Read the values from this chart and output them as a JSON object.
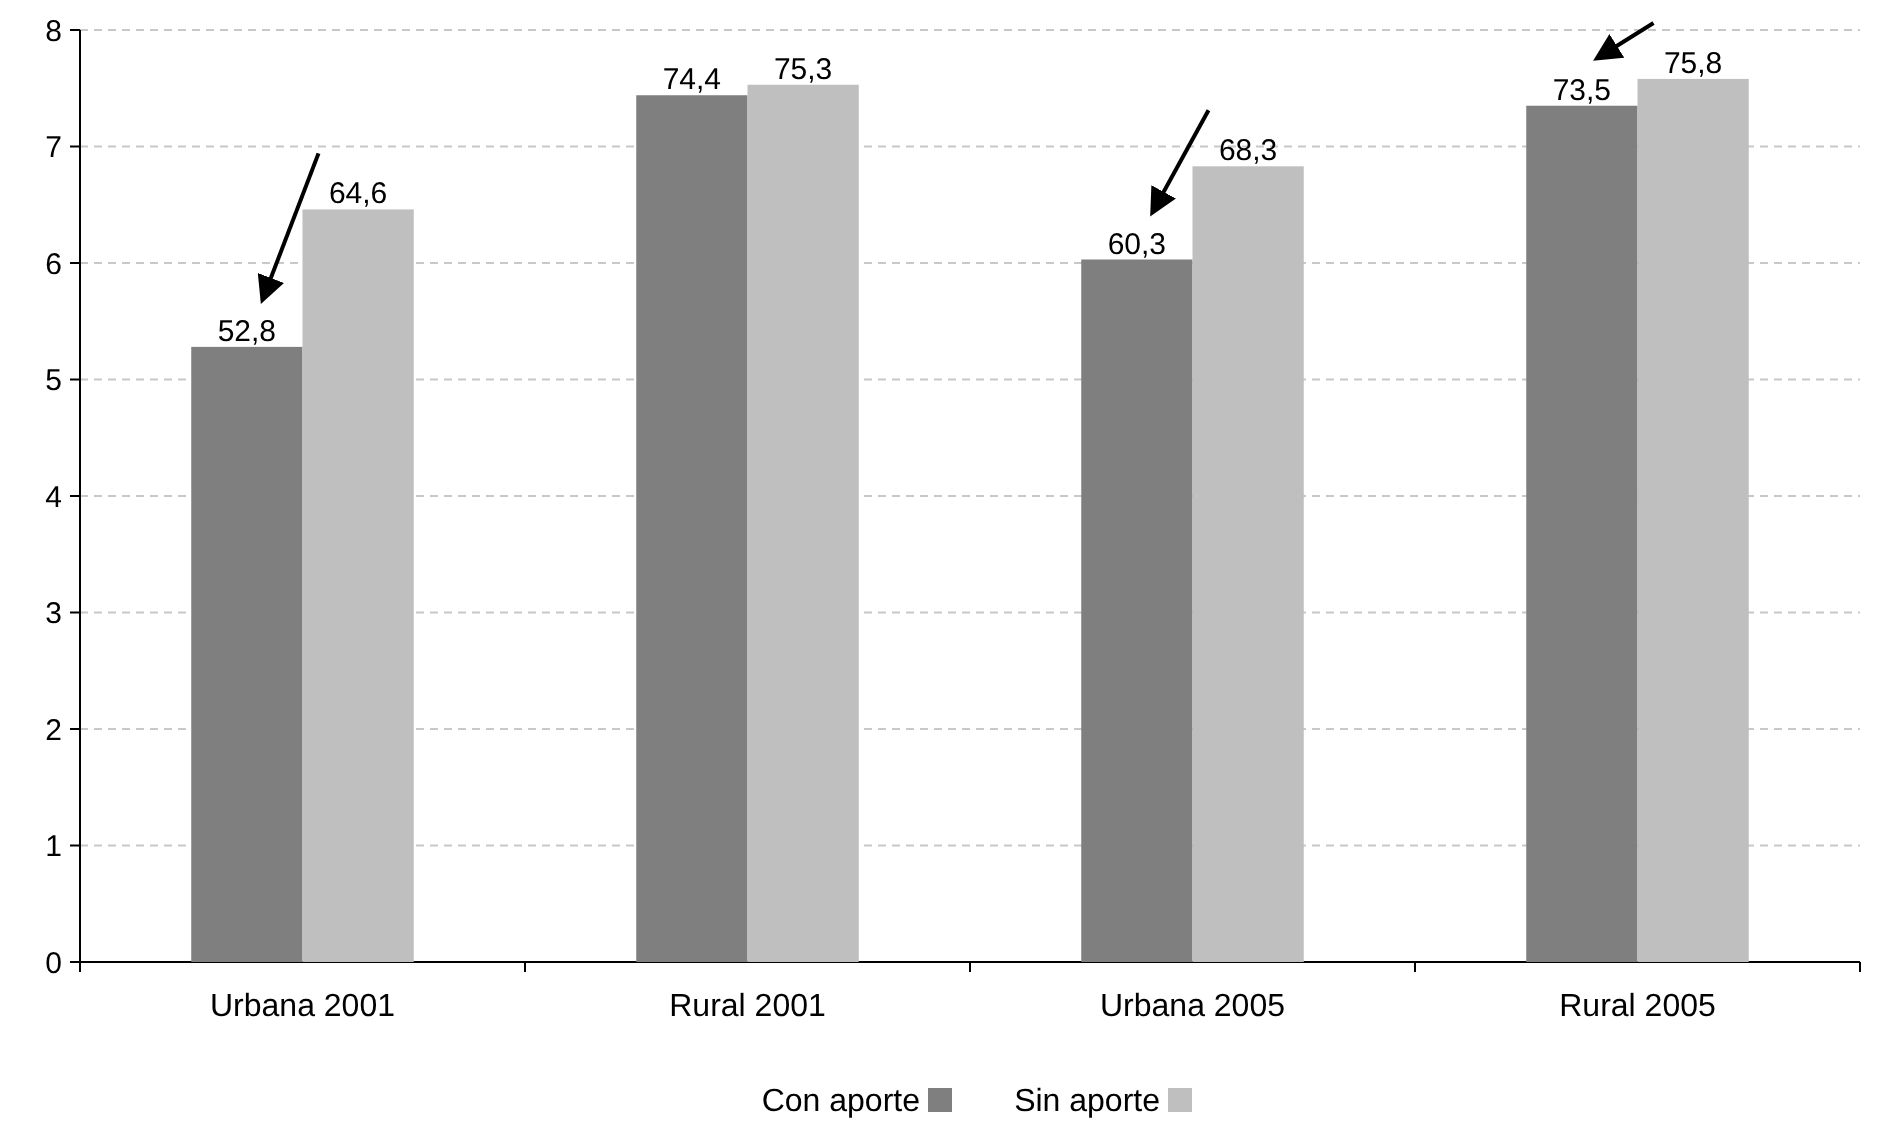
{
  "chart_data": {
    "type": "bar",
    "categories": [
      "Urbana 2001",
      "Rural 2001",
      "Urbana 2005",
      "Rural 2005"
    ],
    "series": [
      {
        "name": "Con aporte",
        "color": "#7f7f7f",
        "values": [
          5.28,
          7.44,
          6.03,
          7.35
        ]
      },
      {
        "name": "Sin aporte",
        "color": "#bfbfbf",
        "values": [
          6.46,
          7.53,
          6.83,
          7.58
        ]
      }
    ],
    "annotations": [
      {
        "text": "52,8",
        "x": "Urbana 2001",
        "y": 5.28
      },
      {
        "text": "74,4",
        "x": "Rural 2001",
        "y": 7.44
      },
      {
        "text": "60,3",
        "x": "Urbana 2005",
        "y": 6.03
      },
      {
        "text": "73,5",
        "x": "Rural 2005",
        "y": 7.35
      },
      {
        "text": "64,6",
        "x": "Urbana 2001",
        "y": 6.46
      },
      {
        "text": "75,3",
        "x": "Rural 2001",
        "y": 7.53
      },
      {
        "text": "68,3",
        "x": "Urbana 2005",
        "y": 6.83
      },
      {
        "text": "75,8",
        "x": "Rural 2005",
        "y": 7.58
      }
    ],
    "ylim": [
      0,
      8
    ],
    "yticks": [
      0,
      1,
      2,
      3,
      4,
      5,
      6,
      7,
      8
    ],
    "grid": "y",
    "legend": "bottom"
  }
}
